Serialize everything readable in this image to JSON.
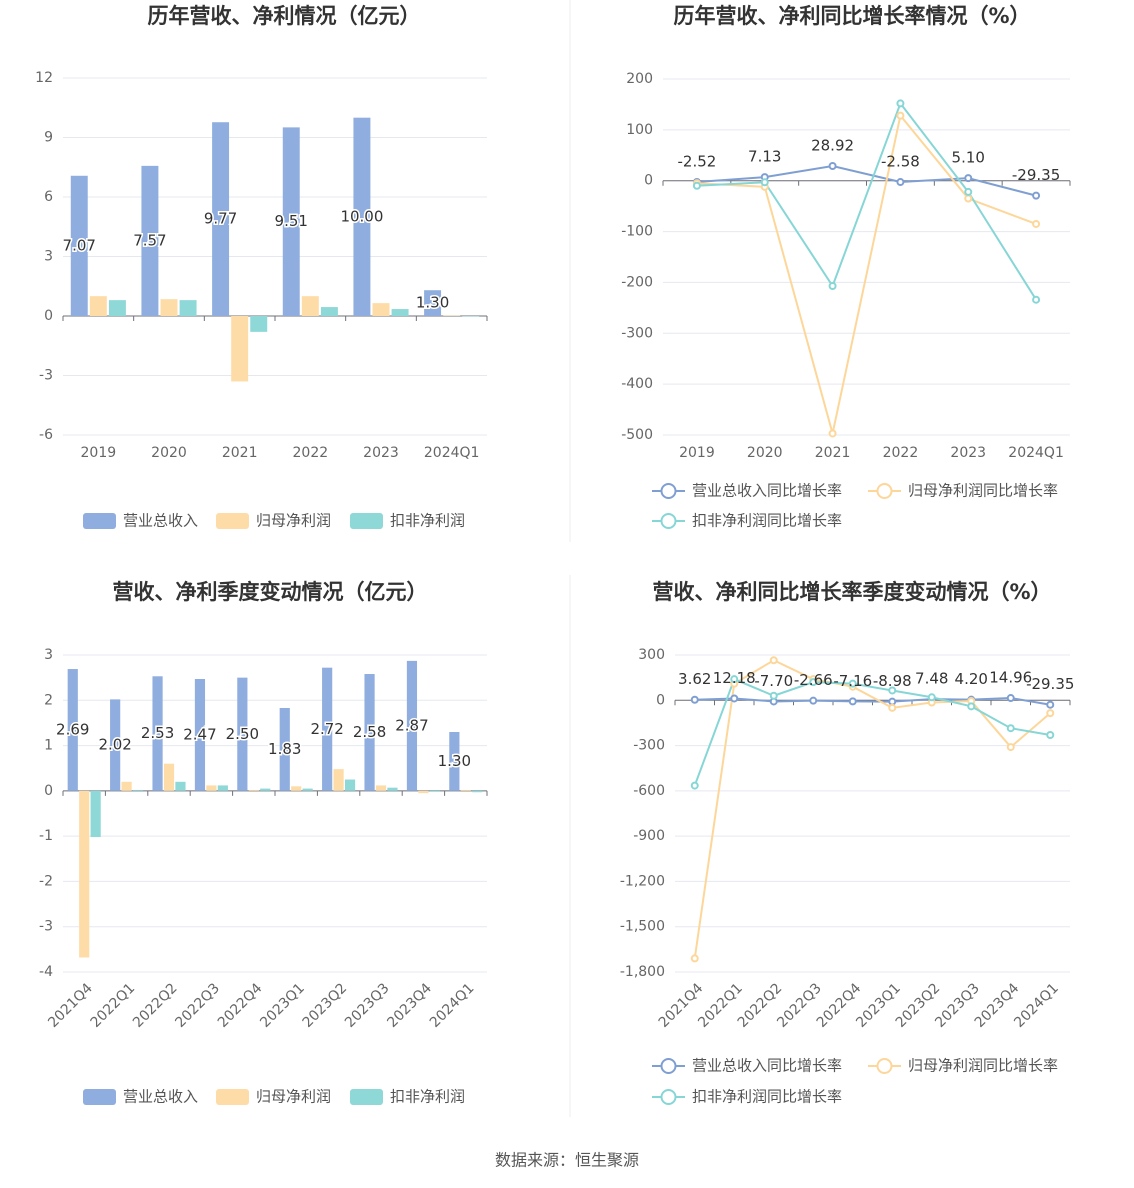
{
  "chart_data": [
    {
      "type": "bar",
      "title": "历年营收、净利情况（亿元）",
      "categories": [
        "2019",
        "2020",
        "2021",
        "2022",
        "2023",
        "2024Q1"
      ],
      "series": [
        {
          "name": "营业总收入",
          "color": "#8fadde",
          "values": [
            7.07,
            7.57,
            9.77,
            9.51,
            10.0,
            1.3
          ],
          "value_labels": [
            "7.07",
            "7.57",
            "9.77",
            "9.51",
            "10.00",
            "1.30"
          ]
        },
        {
          "name": "归母净利润",
          "color": "#fedca8",
          "values": [
            1.0,
            0.85,
            -3.3,
            1.0,
            0.65,
            0.02
          ]
        },
        {
          "name": "扣非净利润",
          "color": "#8ed8d8",
          "values": [
            0.8,
            0.8,
            -0.8,
            0.45,
            0.35,
            -0.02
          ]
        }
      ],
      "ylim": [
        -6,
        12
      ],
      "yticks": [
        -6,
        -3,
        0,
        3,
        6,
        9,
        12
      ],
      "grid": true,
      "legend": "bottom"
    },
    {
      "type": "line",
      "title": "历年营收、净利同比增长率情况（%）",
      "categories": [
        "2019",
        "2020",
        "2021",
        "2022",
        "2023",
        "2024Q1"
      ],
      "series": [
        {
          "name": "营业总收入同比增长率",
          "color": "#7f9fd2",
          "values": [
            -2.52,
            7.13,
            28.92,
            -2.58,
            5.1,
            -29.35
          ],
          "value_labels": [
            "-2.52",
            "7.13",
            "28.92",
            "-2.58",
            "5.10",
            "-29.35"
          ]
        },
        {
          "name": "归母净利润同比增长率",
          "color": "#fdd699",
          "values": [
            -5,
            -12,
            -497,
            128,
            -35,
            -85
          ]
        },
        {
          "name": "扣非净利润同比增长率",
          "color": "#87d6d6",
          "values": [
            -10,
            -3,
            -207,
            152,
            -22,
            -234
          ]
        }
      ],
      "ylim": [
        -500,
        200
      ],
      "yticks": [
        -500,
        -400,
        -300,
        -200,
        -100,
        0,
        100,
        200
      ],
      "grid": true,
      "legend": "bottom"
    },
    {
      "type": "bar",
      "title": "营收、净利季度变动情况（亿元）",
      "categories": [
        "2021Q4",
        "2022Q1",
        "2022Q2",
        "2022Q3",
        "2022Q4",
        "2023Q1",
        "2023Q2",
        "2023Q3",
        "2023Q4",
        "2024Q1"
      ],
      "series": [
        {
          "name": "营业总收入",
          "color": "#8fadde",
          "values": [
            2.69,
            2.02,
            2.53,
            2.47,
            2.5,
            1.83,
            2.72,
            2.58,
            2.87,
            1.3
          ],
          "value_labels": [
            "2.69",
            "2.02",
            "2.53",
            "2.47",
            "2.50",
            "1.83",
            "2.72",
            "2.58",
            "2.87",
            "1.30"
          ]
        },
        {
          "name": "归母净利润",
          "color": "#fedca8",
          "values": [
            -3.68,
            0.2,
            0.6,
            0.12,
            0.02,
            0.1,
            0.48,
            0.12,
            -0.05,
            0.02
          ]
        },
        {
          "name": "扣非净利润",
          "color": "#8ed8d8",
          "values": [
            -1.02,
            0.02,
            0.2,
            0.12,
            0.05,
            0.05,
            0.25,
            0.07,
            -0.02,
            -0.03
          ]
        }
      ],
      "ylim": [
        -4,
        3
      ],
      "yticks": [
        -4,
        -3,
        -2,
        -1,
        0,
        1,
        2,
        3
      ],
      "grid": true,
      "legend": "bottom"
    },
    {
      "type": "line",
      "title": "营收、净利同比增长率季度变动情况（%）",
      "categories": [
        "2021Q4",
        "2022Q1",
        "2022Q2",
        "2022Q3",
        "2022Q4",
        "2023Q1",
        "2023Q2",
        "2023Q3",
        "2023Q4",
        "2024Q1"
      ],
      "series": [
        {
          "name": "营业总收入同比增长率",
          "color": "#7f9fd2",
          "values": [
            3.62,
            12.18,
            -7.7,
            -2.66,
            -7.16,
            -8.98,
            7.48,
            4.2,
            14.96,
            -29.35
          ],
          "value_labels": [
            "3.62",
            "12.18",
            "-7.70",
            "-2.66",
            "-7.16",
            "-8.98",
            "7.48",
            "4.20",
            "14.96",
            "-29.35"
          ]
        },
        {
          "name": "归母净利润同比增长率",
          "color": "#fdd699",
          "values": [
            -1710,
            110,
            265,
            140,
            90,
            -50,
            -15,
            -5,
            -310,
            -85
          ]
        },
        {
          "name": "扣非净利润同比增长率",
          "color": "#87d6d6",
          "values": [
            -565,
            140,
            30,
            120,
            110,
            65,
            20,
            -40,
            -185,
            -230
          ]
        }
      ],
      "ylim": [
        -1800,
        300
      ],
      "yticks": [
        {
          "value": -1800,
          "label": "-1,800"
        },
        {
          "value": -1500,
          "label": "-1,500"
        },
        {
          "value": -1200,
          "label": "-1,200"
        },
        -900,
        -600,
        -300,
        0,
        300
      ],
      "grid": true,
      "legend": "bottom"
    }
  ],
  "footer": "数据来源：恒生聚源"
}
